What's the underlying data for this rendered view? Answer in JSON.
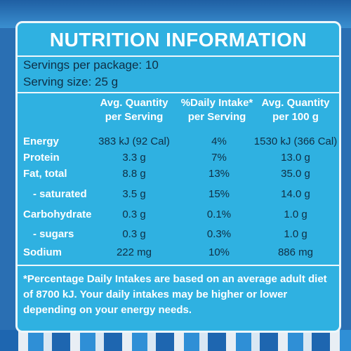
{
  "title": "NUTRITION INFORMATION",
  "servings_per_package": "Servings per package: 10",
  "serving_size": "Serving size: 25 g",
  "columns": {
    "per_serving": [
      "Avg. Quantity",
      "per Serving"
    ],
    "daily_intake": [
      "%Daily Intake*",
      "per Serving"
    ],
    "per_100g": [
      "Avg. Quantity",
      "per 100 g"
    ]
  },
  "rows": [
    {
      "nutrient": "Energy",
      "per_serving": "383 kJ (92 Cal)",
      "daily_intake": "4%",
      "per_100g": "1530 kJ (366 Cal)"
    },
    {
      "nutrient": "Protein",
      "per_serving": "3.3 g",
      "daily_intake": "7%",
      "per_100g": "13.0 g"
    },
    {
      "nutrient": "Fat, total",
      "per_serving": "8.8 g",
      "daily_intake": "13%",
      "per_100g": "35.0 g"
    },
    {
      "nutrient": "- saturated",
      "per_serving": "3.5 g",
      "daily_intake": "15%",
      "per_100g": "14.0 g"
    },
    {
      "nutrient": "Carbohydrate",
      "per_serving": "0.3 g",
      "daily_intake": "0.1%",
      "per_100g": "1.0 g"
    },
    {
      "nutrient": "- sugars",
      "per_serving": "0.3 g",
      "daily_intake": "0.3%",
      "per_100g": "1.0 g"
    },
    {
      "nutrient": "Sodium",
      "per_serving": "222 mg",
      "daily_intake": "10%",
      "per_100g": "886 mg"
    }
  ],
  "footnote": "*Percentage Daily Intakes are based on an average adult diet of 8700 kJ. Your daily intakes may be higher or lower depending on your energy needs.",
  "colors": {
    "panel": "#2fb1e1",
    "border": "#eef7fb",
    "heading_text": "#ffffff",
    "value_text": "#0f2f45"
  }
}
